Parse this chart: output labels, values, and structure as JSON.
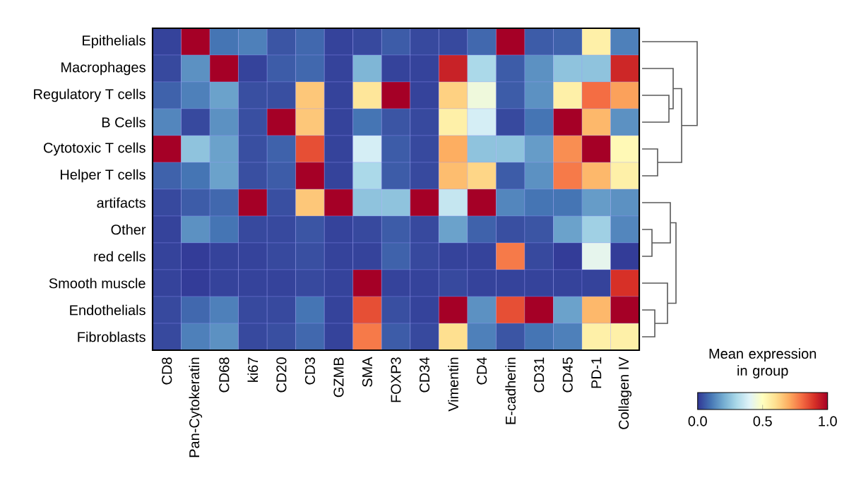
{
  "chart_data": {
    "type": "heatmap",
    "categories": [
      "CD8",
      "Pan-Cytokeratin",
      "CD68",
      "ki67",
      "CD20",
      "CD3",
      "GZMB",
      "SMA",
      "FOXP3",
      "CD34",
      "Vimentin",
      "CD4",
      "E-cadherin",
      "CD31",
      "CD45",
      "PD-1",
      "Collagen IV"
    ],
    "y_categories": [
      "Epithelials",
      "Macrophages",
      "Regulatory T cells",
      "B Cells",
      "Cytotoxic T cells",
      "Helper T cells",
      "artifacts",
      "Other",
      "red cells",
      "Smooth muscle",
      "Endothelials",
      "Fibroblasts"
    ],
    "cells": [
      [
        0.02,
        1.0,
        0.1,
        0.12,
        0.05,
        0.08,
        0.02,
        0.03,
        0.06,
        0.03,
        0.03,
        0.08,
        1.0,
        0.06,
        0.07,
        0.55,
        0.12
      ],
      [
        0.03,
        0.15,
        1.0,
        0.02,
        0.06,
        0.08,
        0.02,
        0.22,
        0.02,
        0.02,
        0.93,
        0.3,
        0.06,
        0.15,
        0.25,
        0.25,
        0.92
      ],
      [
        0.07,
        0.12,
        0.18,
        0.04,
        0.04,
        0.65,
        0.02,
        0.58,
        1.0,
        0.02,
        0.63,
        0.45,
        0.06,
        0.15,
        0.55,
        0.8,
        0.72
      ],
      [
        0.13,
        0.03,
        0.15,
        0.04,
        1.0,
        0.65,
        0.02,
        0.1,
        0.05,
        0.03,
        0.55,
        0.38,
        0.03,
        0.1,
        1.0,
        0.68,
        0.15
      ],
      [
        1.0,
        0.25,
        0.18,
        0.04,
        0.07,
        0.85,
        0.02,
        0.38,
        0.06,
        0.03,
        0.7,
        0.25,
        0.25,
        0.17,
        0.75,
        1.0,
        0.52
      ],
      [
        0.07,
        0.1,
        0.18,
        0.04,
        0.06,
        1.0,
        0.02,
        0.3,
        0.06,
        0.03,
        0.67,
        0.62,
        0.06,
        0.15,
        0.78,
        0.68,
        0.55
      ],
      [
        0.03,
        0.06,
        0.08,
        1.0,
        0.04,
        0.65,
        1.0,
        0.25,
        0.25,
        1.0,
        0.35,
        1.0,
        0.13,
        0.1,
        0.1,
        0.17,
        0.15
      ],
      [
        0.02,
        0.15,
        0.1,
        0.03,
        0.03,
        0.05,
        0.02,
        0.03,
        0.06,
        0.03,
        0.18,
        0.07,
        0.04,
        0.05,
        0.18,
        0.28,
        0.13
      ],
      [
        0.02,
        0.01,
        0.02,
        0.02,
        0.03,
        0.04,
        0.02,
        0.02,
        0.07,
        0.03,
        0.02,
        0.02,
        0.78,
        0.03,
        0.01,
        0.42,
        0.01
      ],
      [
        0.02,
        0.01,
        0.02,
        0.02,
        0.02,
        0.03,
        0.02,
        1.0,
        0.02,
        0.02,
        0.03,
        0.02,
        0.02,
        0.02,
        0.02,
        0.02,
        0.9
      ],
      [
        0.03,
        0.08,
        0.12,
        0.03,
        0.03,
        0.1,
        0.02,
        0.85,
        0.04,
        0.02,
        1.0,
        0.15,
        0.85,
        1.0,
        0.18,
        0.68,
        1.0
      ],
      [
        0.03,
        0.12,
        0.15,
        0.03,
        0.04,
        0.08,
        0.02,
        0.78,
        0.06,
        0.03,
        0.6,
        0.12,
        0.05,
        0.1,
        0.12,
        0.55,
        0.55
      ]
    ],
    "clim": [
      0,
      1
    ],
    "cticks": [
      {
        "value": 0,
        "label": "0.0"
      },
      {
        "value": 0.5,
        "label": "0.5"
      },
      {
        "value": 1,
        "label": "1.0"
      }
    ],
    "clabel": "Mean expression in group"
  }
}
